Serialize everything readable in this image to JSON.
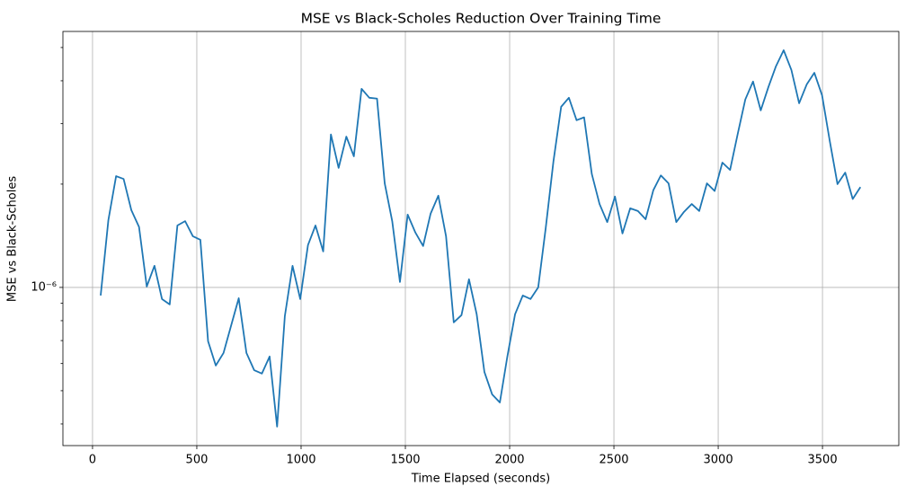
{
  "chart_data": {
    "type": "line",
    "title": "MSE vs Black-Scholes Reduction Over Training Time",
    "xlabel": "Time Elapsed (seconds)",
    "ylabel": "MSE vs Black-Scholes",
    "x": [
      39,
      76,
      113,
      149,
      186,
      223,
      260,
      297,
      333,
      370,
      407,
      444,
      481,
      517,
      554,
      591,
      628,
      665,
      701,
      738,
      775,
      812,
      849,
      885,
      922,
      959,
      996,
      1033,
      1069,
      1106,
      1143,
      1180,
      1217,
      1253,
      1290,
      1327,
      1364,
      1401,
      1437,
      1474,
      1511,
      1548,
      1585,
      1621,
      1658,
      1695,
      1732,
      1769,
      1805,
      1842,
      1879,
      1916,
      1953,
      1989,
      2026,
      2063,
      2100,
      2137,
      2173,
      2210,
      2247,
      2284,
      2321,
      2357,
      2394,
      2431,
      2468,
      2505,
      2541,
      2578,
      2615,
      2652,
      2689,
      2725,
      2762,
      2799,
      2836,
      2873,
      2909,
      2946,
      2983,
      3020,
      3057,
      3093,
      3130,
      3167,
      3204,
      3241,
      3277,
      3314,
      3351,
      3388,
      3425,
      3461,
      3498,
      3535,
      3572,
      3609,
      3645,
      3682
    ],
    "series": [
      {
        "name": "MSE vs Black-Scholes",
        "color": "#1f77b4",
        "values": [
          9.47e-07,
          1.571e-06,
          2.11e-06,
          2.07e-06,
          1.68e-06,
          1.5e-06,
          1.006e-06,
          1.156e-06,
          9.25e-07,
          8.92e-07,
          1.515e-06,
          1.56e-06,
          1.41e-06,
          1.376e-06,
          6.97e-07,
          5.92e-07,
          6.44e-07,
          7.76e-07,
          9.3e-07,
          6.44e-07,
          5.74e-07,
          5.61e-07,
          6.29e-07,
          3.93e-07,
          8.24e-07,
          1.156e-06,
          9.25e-07,
          1.328e-06,
          1.515e-06,
          1.273e-06,
          2.79e-06,
          2.23e-06,
          2.75e-06,
          2.41e-06,
          3.79e-06,
          3.57e-06,
          3.55e-06,
          2.01e-06,
          1.56e-06,
          1.037e-06,
          1.63e-06,
          1.445e-06,
          1.32e-06,
          1.64e-06,
          1.85e-06,
          1.41e-06,
          7.91e-07,
          8.3e-07,
          1.056e-06,
          8.35e-07,
          5.67e-07,
          4.88e-07,
          4.62e-07,
          6.29e-07,
          8.35e-07,
          9.47e-07,
          9.25e-07,
          1e-06,
          1.489e-06,
          2.33e-06,
          3.36e-06,
          3.57e-06,
          3.07e-06,
          3.13e-06,
          2.14e-06,
          1.75e-06,
          1.55e-06,
          1.84e-06,
          1.436e-06,
          1.7e-06,
          1.67e-06,
          1.58e-06,
          1.92e-06,
          2.12e-06,
          2.01e-06,
          1.55e-06,
          1.66e-06,
          1.75e-06,
          1.67e-06,
          2.01e-06,
          1.91e-06,
          2.31e-06,
          2.2e-06,
          2.79e-06,
          3.53e-06,
          3.98e-06,
          3.28e-06,
          3.84e-06,
          4.41e-06,
          4.91e-06,
          4.3e-06,
          3.44e-06,
          3.91e-06,
          4.22e-06,
          3.63e-06,
          2.67e-06,
          2e-06,
          2.16e-06,
          1.81e-06,
          1.96e-06
        ]
      }
    ],
    "xlim": [
      -142,
      3866
    ],
    "xticks": [
      0,
      500,
      1000,
      1500,
      2000,
      2500,
      3000,
      3500
    ],
    "ylim": [
      3.46e-07,
      5.57e-06
    ],
    "ylog": true,
    "yticks": [
      {
        "value": 1e-06,
        "label": "10⁻⁶"
      }
    ],
    "yminorticks": [
      4e-07,
      5e-07,
      6e-07,
      7e-07,
      8e-07,
      9e-07,
      2e-06,
      3e-06,
      4e-06,
      5e-06
    ],
    "grid": true
  }
}
